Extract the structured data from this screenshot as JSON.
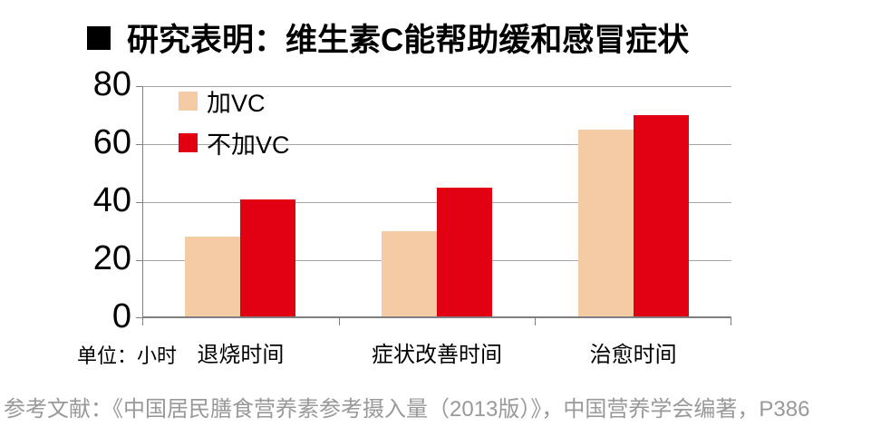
{
  "title": {
    "bullet": "■",
    "text": "研究表明：维生素C能帮助缓和感冒症状"
  },
  "unit_label": "单位：小时",
  "citation": "参考文献：《中国居民膳食营养素参考摄入量（2013版）》，中国营养学会编著，P386",
  "chart_data": {
    "type": "bar",
    "title": "研究表明：维生素C能帮助缓和感冒症状",
    "categories": [
      "退烧时间",
      "症状改善时间",
      "治愈时间"
    ],
    "series": [
      {
        "name": "加VC",
        "color": "#F5CBA6",
        "values": [
          28,
          30,
          65
        ]
      },
      {
        "name": "不加VC",
        "color": "#E20013",
        "values": [
          41,
          45,
          70
        ]
      }
    ],
    "unit": "小时",
    "ylabel": "",
    "ylim": [
      0,
      80
    ],
    "yticks": [
      0,
      20,
      40,
      60,
      80
    ],
    "grid": true,
    "legend_position": "top-left",
    "gridline_color": "#A6A6A6",
    "axis_color": "#7F7F7F"
  },
  "colors": {
    "background": "#FFFFFF",
    "title_text": "#000000",
    "citation_text": "#999999"
  }
}
